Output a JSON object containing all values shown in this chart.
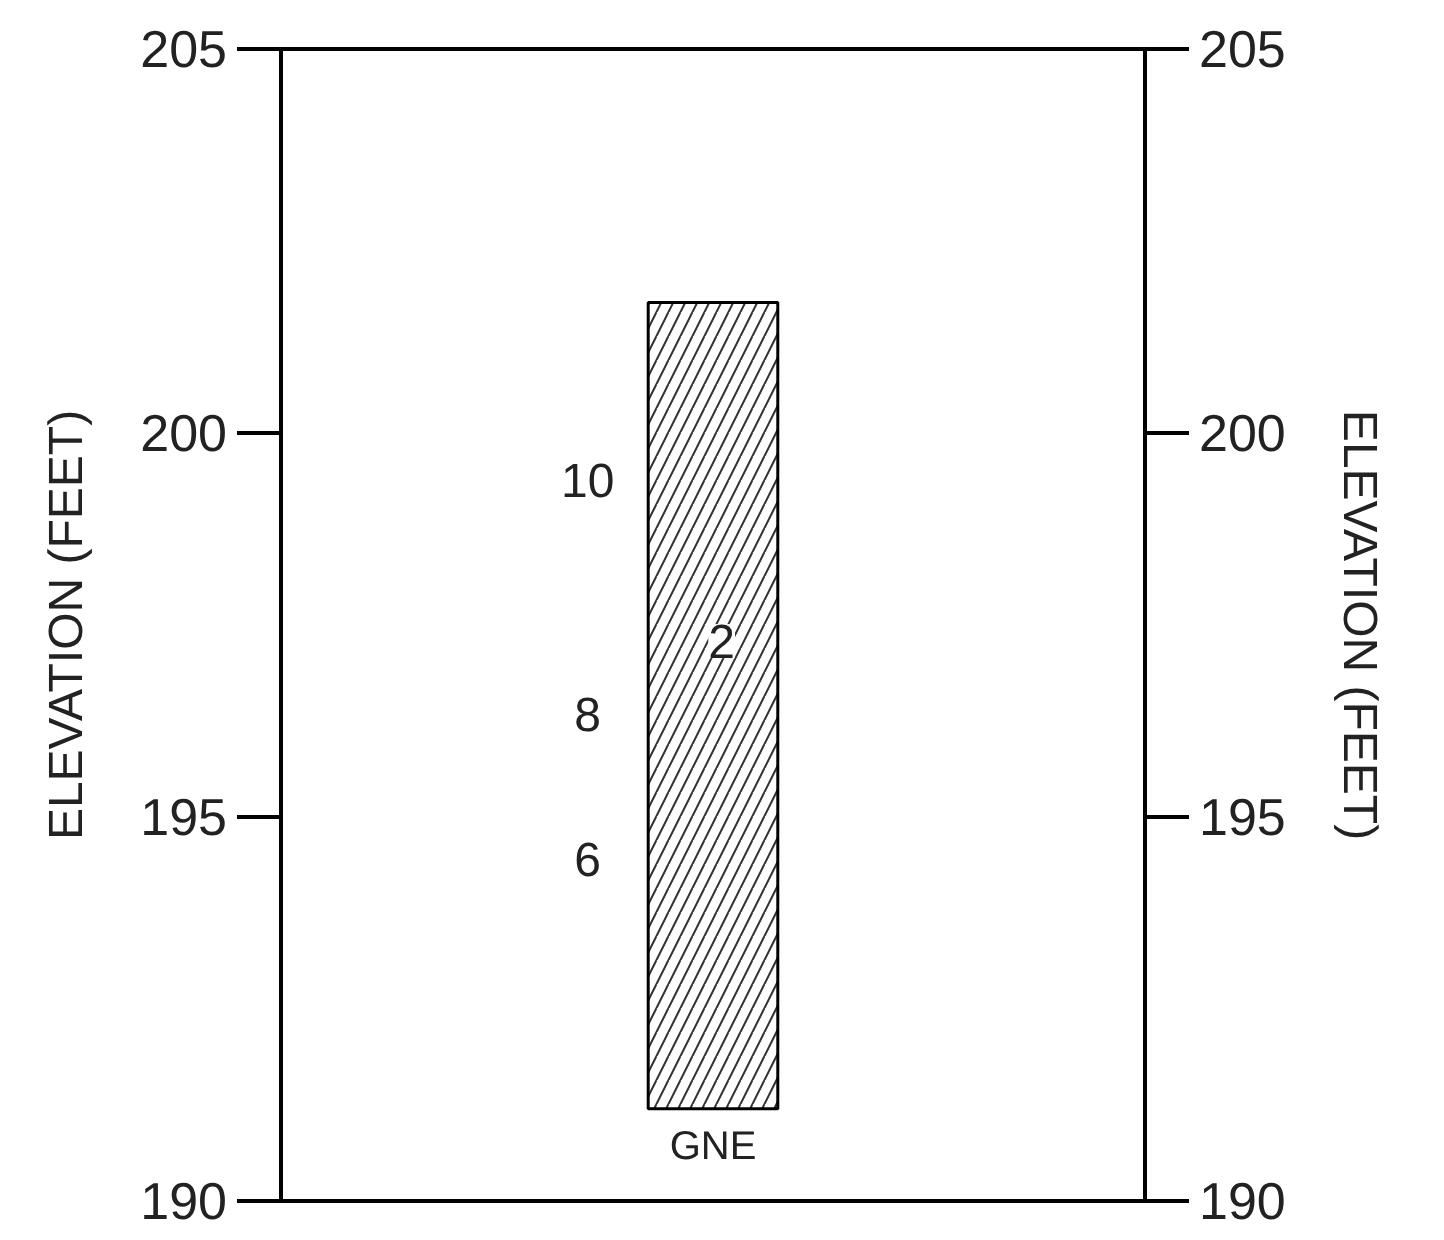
{
  "chart_data": {
    "type": "bar",
    "categories": [
      "GNE"
    ],
    "values": [
      10.5
    ],
    "base": [
      191.2
    ],
    "color": "#ffffff",
    "ylabel": "ELEVATION (FEET)",
    "y2label": "ELEVATION (FEET)",
    "ylim": [
      190,
      205
    ],
    "yticks": [
      190,
      195,
      200,
      205
    ],
    "y2lim": [
      190,
      205
    ],
    "y2ticks": [
      190,
      195,
      200,
      205
    ],
    "annotations": [
      "10",
      "8",
      "6",
      "2"
    ],
    "grid": false
  }
}
